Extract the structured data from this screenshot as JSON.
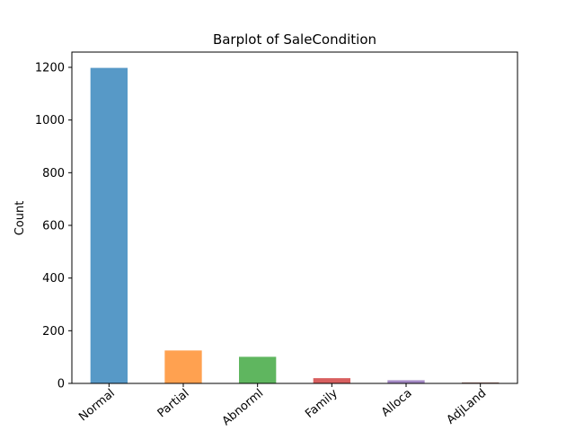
{
  "chart_data": {
    "type": "bar",
    "title": "Barplot of SaleCondition",
    "xlabel": "",
    "ylabel": "Count",
    "categories": [
      "Normal",
      "Partial",
      "Abnorml",
      "Family",
      "Alloca",
      "AdjLand"
    ],
    "values": [
      1198,
      125,
      101,
      20,
      12,
      4
    ],
    "ylim": [
      0,
      1258
    ],
    "yticks": [
      0,
      200,
      400,
      600,
      800,
      1000,
      1200
    ],
    "grid": false,
    "legend": "none",
    "colors": [
      "#5799c7",
      "#ffa150",
      "#5fb65f",
      "#d85f5f",
      "#a489c5",
      "#a17b73"
    ]
  }
}
